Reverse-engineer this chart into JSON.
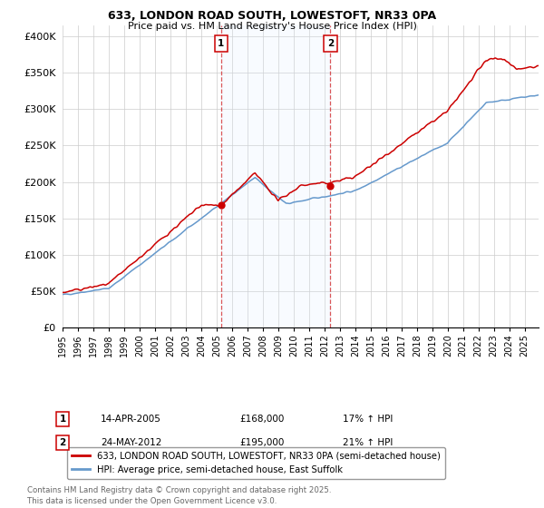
{
  "title1": "633, LONDON ROAD SOUTH, LOWESTOFT, NR33 0PA",
  "title2": "Price paid vs. HM Land Registry's House Price Index (HPI)",
  "ylabel_ticks": [
    "£0",
    "£50K",
    "£100K",
    "£150K",
    "£200K",
    "£250K",
    "£300K",
    "£350K",
    "£400K"
  ],
  "ytick_vals": [
    0,
    50000,
    100000,
    150000,
    200000,
    250000,
    300000,
    350000,
    400000
  ],
  "ylim": [
    0,
    415000
  ],
  "xlim_start": 1995.0,
  "xlim_end": 2025.9,
  "red_line_color": "#cc0000",
  "blue_line_color": "#6699cc",
  "shaded_color": "#ddeeff",
  "marker1_year": 2005.29,
  "marker1_price": 168000,
  "marker1_label": "1",
  "marker2_year": 2012.39,
  "marker2_price": 195000,
  "marker2_label": "2",
  "vline_color": "#cc0000",
  "legend_entry1": "633, LONDON ROAD SOUTH, LOWESTOFT, NR33 0PA (semi-detached house)",
  "legend_entry2": "HPI: Average price, semi-detached house, East Suffolk",
  "annotation1_date": "14-APR-2005",
  "annotation1_price": "£168,000",
  "annotation1_pct": "17% ↑ HPI",
  "annotation2_date": "24-MAY-2012",
  "annotation2_price": "£195,000",
  "annotation2_pct": "21% ↑ HPI",
  "footer": "Contains HM Land Registry data © Crown copyright and database right 2025.\nThis data is licensed under the Open Government Licence v3.0.",
  "xtick_years": [
    1995,
    1996,
    1997,
    1998,
    1999,
    2000,
    2001,
    2002,
    2003,
    2004,
    2005,
    2006,
    2007,
    2008,
    2009,
    2010,
    2011,
    2012,
    2013,
    2014,
    2015,
    2016,
    2017,
    2018,
    2019,
    2020,
    2021,
    2022,
    2023,
    2024,
    2025
  ]
}
